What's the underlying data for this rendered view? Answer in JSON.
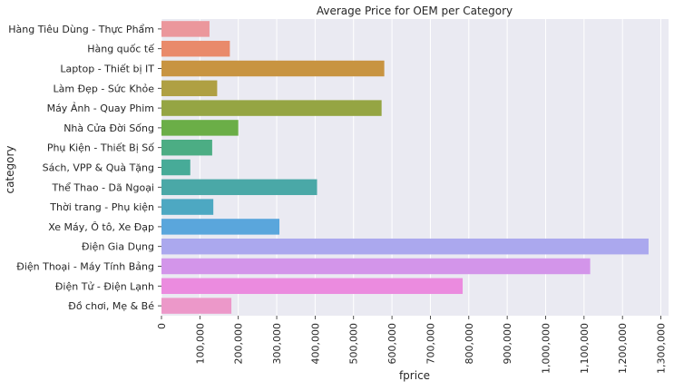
{
  "chart_data": {
    "type": "bar",
    "orientation": "horizontal",
    "title": "Average Price for OEM per Category",
    "xlabel": "fprice",
    "ylabel": "category",
    "xlim": [
      0,
      1320000
    ],
    "x_ticks": [
      0,
      100000,
      200000,
      300000,
      400000,
      500000,
      600000,
      700000,
      800000,
      900000,
      1000000,
      1100000,
      1200000,
      1300000
    ],
    "x_tick_labels": [
      "0",
      "100,000",
      "200,000",
      "300,000",
      "400,000",
      "500,000",
      "600,000",
      "700,000",
      "800,000",
      "900,000",
      "1,000,000",
      "1,100,000",
      "1,200,000",
      "1,300,000"
    ],
    "grid": true,
    "categories": [
      "Hàng Tiêu Dùng - Thực Phẩm",
      "Hàng quốc tế",
      "Laptop - Thiết bị IT",
      "Làm Đẹp - Sức Khỏe",
      "Máy Ảnh - Quay Phim",
      "Nhà Cửa Đời Sống",
      "Phụ Kiện - Thiết Bị Số",
      "Sách, VPP & Quà Tặng",
      "Thể Thao - Dã Ngoại",
      "Thời trang - Phụ kiện",
      "Xe Máy, Ô tô, Xe Đạp",
      "Điện Gia Dụng",
      "Điện Thoại - Máy Tính Bảng",
      "Điện Tử - Điện Lạnh",
      "Đồ chơi, Mẹ & Bé"
    ],
    "values": [
      125000,
      178000,
      580000,
      145000,
      573000,
      200000,
      132000,
      75000,
      405000,
      135000,
      307000,
      1268000,
      1116000,
      784000,
      182000
    ],
    "colors": [
      "#EB979C",
      "#E98A6B",
      "#C89441",
      "#AFA043",
      "#95A543",
      "#6BAE47",
      "#4CAD84",
      "#47AB98",
      "#4AA8A7",
      "#4DA8C2",
      "#5AA6DC",
      "#ABA8EE",
      "#D395EA",
      "#EB8BDF",
      "#EC98C9"
    ],
    "style": {
      "background": "#EAEAF2",
      "gridline": "#FFFFFF"
    }
  }
}
